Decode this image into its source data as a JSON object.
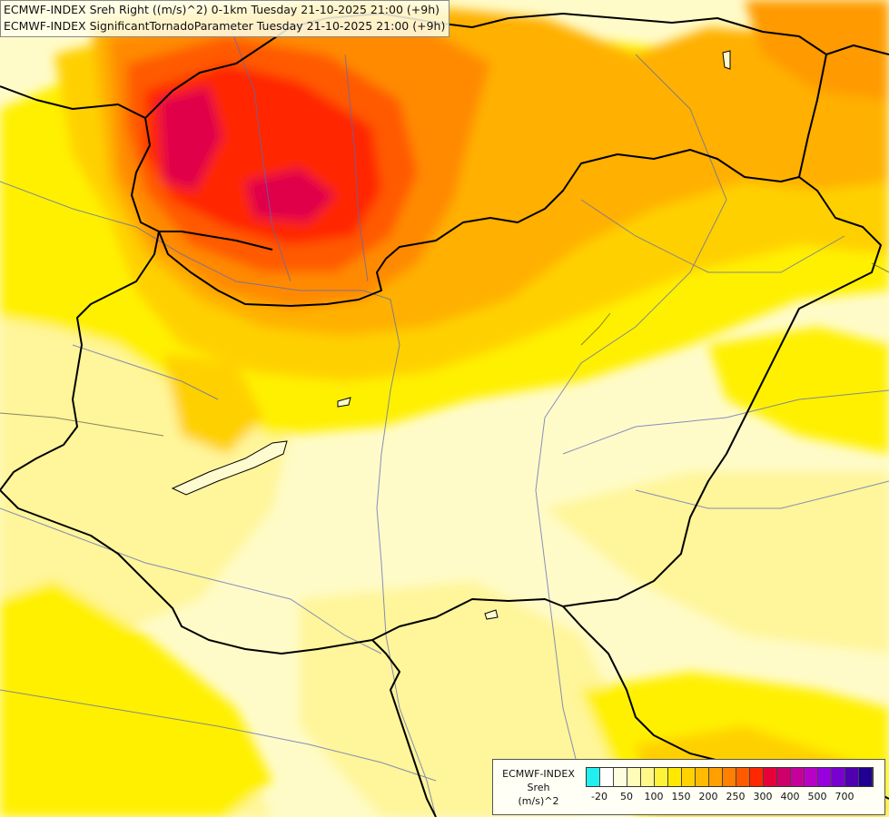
{
  "titles": {
    "line1": "ECMWF-INDEX Sreh Right ((m/s)^2) 0-1km Tuesday 21-10-2025 21:00 (+9h)",
    "line2": "ECMWF-INDEX SignificantTornadoParameter Tuesday 21-10-2025 21:00 (+9h)"
  },
  "legend": {
    "source": "ECMWF-INDEX",
    "variable": "Sreh",
    "unit": "(m/s)^2",
    "colors": [
      "#22f0f0",
      "#ffffff",
      "#fffde0",
      "#fffbb8",
      "#fff78a",
      "#fff23a",
      "#ffe800",
      "#ffd200",
      "#ffbb00",
      "#ff9f00",
      "#ff7f00",
      "#ff5a00",
      "#ff2800",
      "#e8003a",
      "#d0006a",
      "#c8009a",
      "#b800c8",
      "#9800e0",
      "#7800d0",
      "#5000b0",
      "#200090"
    ],
    "ticks": [
      "-20",
      "50",
      "100",
      "150",
      "200",
      "250",
      "300",
      "400",
      "500",
      "700"
    ]
  },
  "palette": {
    "pale": "#fffbc8",
    "light_yellow": "#fff59a",
    "yellow": "#fff000",
    "gold": "#ffd000",
    "orange_light": "#ffb000",
    "orange": "#ff8a00",
    "orange_red": "#ff5a00",
    "red": "#ff2a00",
    "crimson": "#e0004a",
    "border": "#000000",
    "river": "#5a6ab8"
  }
}
